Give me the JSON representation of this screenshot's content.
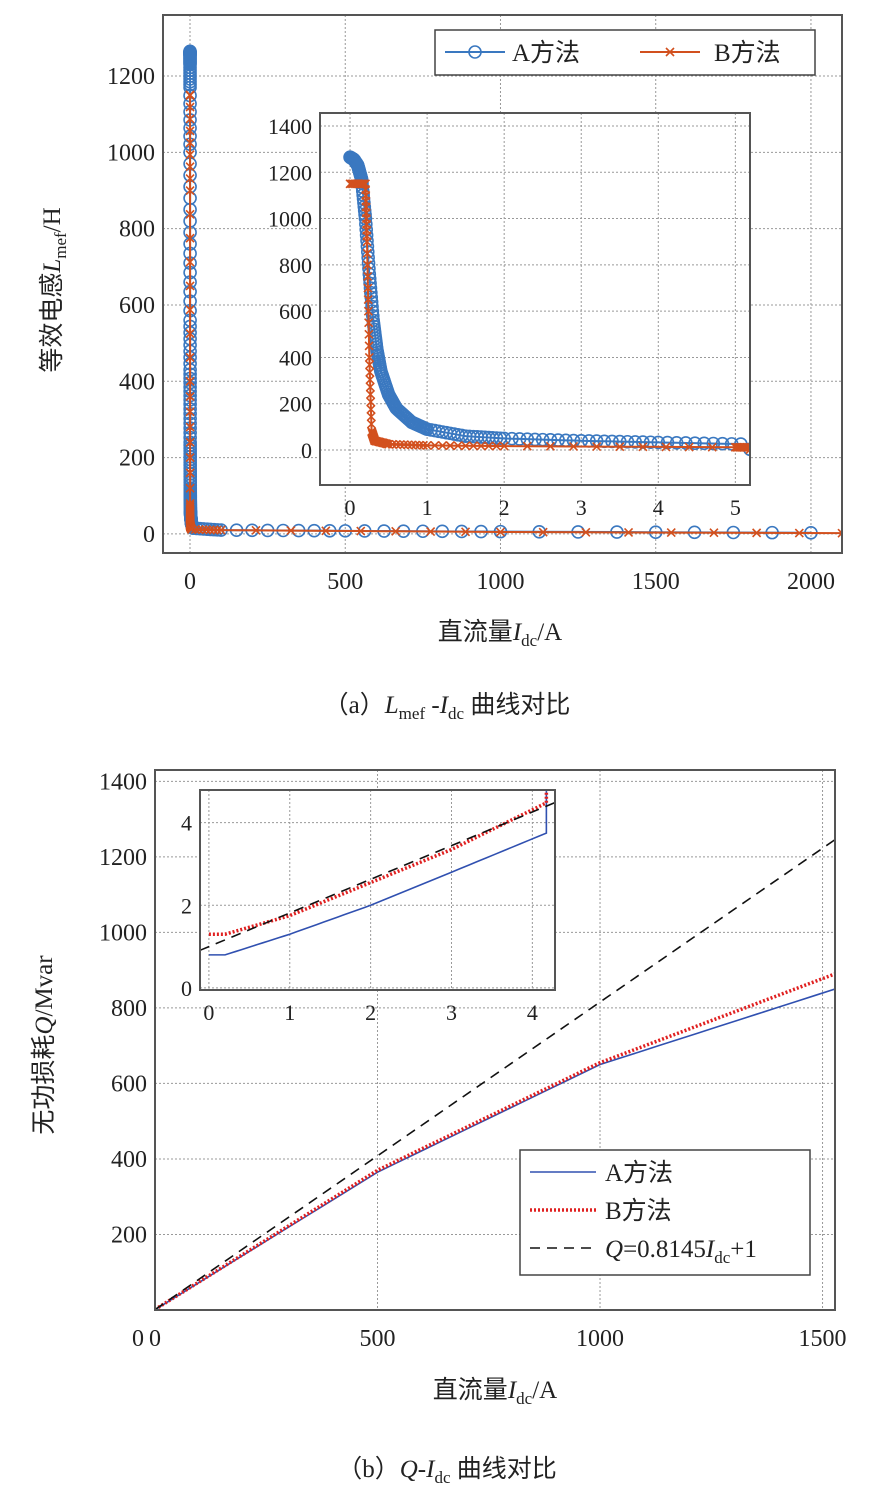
{
  "chart_data": [
    {
      "type": "scatter",
      "caption": {
        "prefix": "（a）",
        "var1": "L",
        "sub1": "mef",
        "mid": " -",
        "var2": "I",
        "sub2": "dc",
        "suffix": " 曲线对比"
      },
      "xlabel": {
        "text": "直流量",
        "var": "I",
        "sub": "dc",
        "unit": "/A"
      },
      "ylabel": {
        "text": "等效电感",
        "var": "L",
        "sub": "mef",
        "unit": "/H"
      },
      "xlim": [
        -87,
        2100
      ],
      "ylim": [
        -50,
        1360
      ],
      "xticks": [
        0,
        500,
        1000,
        1500,
        2000
      ],
      "yticks": [
        0,
        200,
        400,
        600,
        800,
        1000,
        1200
      ],
      "grid": true,
      "legend_position": "top-right",
      "series": [
        {
          "name": "A方法",
          "color": "#3a78c0",
          "marker": "circle",
          "x": [
            0,
            0.05,
            0.1,
            0.15,
            0.2,
            0.25,
            0.3,
            0.35,
            0.4,
            0.5,
            0.6,
            0.8,
            1.0,
            1.5,
            2,
            3,
            4,
            5.2,
            10,
            100,
            500,
            1000,
            2000
          ],
          "y": [
            1265,
            1255,
            1230,
            1170,
            1000,
            760,
            560,
            430,
            340,
            240,
            180,
            120,
            90,
            60,
            50,
            40,
            33,
            25,
            15,
            10,
            8,
            6,
            3
          ]
        },
        {
          "name": "B方法",
          "color": "#d2501e",
          "marker": "x",
          "x": [
            0,
            0.2,
            0.22,
            0.25,
            0.28,
            0.32,
            0.5,
            1,
            2,
            5,
            100,
            1000,
            2100
          ],
          "y": [
            1150,
            1150,
            900,
            400,
            80,
            40,
            25,
            20,
            17,
            12,
            10,
            5,
            2
          ]
        }
      ],
      "inset": {
        "xlim": [
          -0.39,
          5.19
        ],
        "ylim": [
          -151,
          1456
        ],
        "xticks": [
          0,
          1,
          2,
          3,
          4,
          5
        ],
        "yticks": [
          0,
          200,
          400,
          600,
          800,
          1000,
          1200,
          1400
        ]
      }
    },
    {
      "type": "line",
      "caption": {
        "prefix": "（b）",
        "var1": "Q",
        "mid": "-",
        "var2": "I",
        "sub2": "dc",
        "suffix": " 曲线对比"
      },
      "xlabel": {
        "text": "直流量",
        "var": "I",
        "sub": "dc",
        "unit": "/A"
      },
      "ylabel": {
        "text": "无功损耗",
        "var": "Q",
        "unit": "/Mvar"
      },
      "xlim": [
        0,
        1528
      ],
      "ylim": [
        0,
        1430
      ],
      "xticks": [
        0,
        500,
        1000,
        1500
      ],
      "yticks": [
        200,
        400,
        600,
        800,
        1000,
        1200,
        1400
      ],
      "grid": true,
      "legend_position": "bottom-right",
      "series": [
        {
          "name": "A方法",
          "color": "#3050b0",
          "style": "solid",
          "x": [
            0,
            0.2,
            1,
            2,
            3,
            4.3,
            500,
            1000,
            1528
          ],
          "y": [
            0.8,
            0.8,
            1.3,
            2.0,
            2.8,
            3.85,
            365,
            650,
            850
          ]
        },
        {
          "name": "B方法",
          "color": "#e02020",
          "style": "dotted",
          "x": [
            0,
            0.2,
            1,
            2,
            3,
            4.3,
            500,
            1000,
            1528
          ],
          "y": [
            1.3,
            1.3,
            1.75,
            2.55,
            3.35,
            4.6,
            370,
            655,
            890
          ]
        },
        {
          "name": "Q=0.8145Idc+1",
          "legend": {
            "var": "Q",
            "eq": "=0.8145",
            "var2": "I",
            "sub": "dc",
            "tail": "+1"
          },
          "color": "#111",
          "style": "dashed",
          "slope": 0.8145,
          "intercept": 1
        }
      ],
      "inset": {
        "xlim": [
          -0.11,
          4.28
        ],
        "ylim": [
          -0.05,
          4.79
        ],
        "xticks": [
          0,
          1,
          2,
          3,
          4
        ],
        "yticks": [
          0,
          2,
          4
        ]
      }
    }
  ]
}
